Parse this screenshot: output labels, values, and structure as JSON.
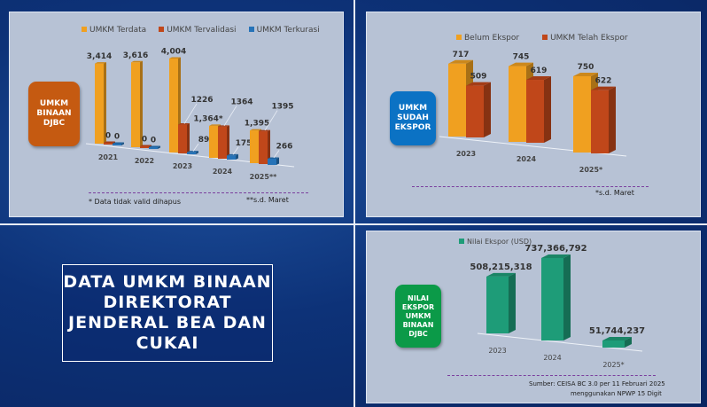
{
  "main_title": "DATA UMKM BINAAN DIREKTORAT JENDERAL BEA DAN CUKAI",
  "chart_data": [
    {
      "type": "bar",
      "badge": "UMKM\nBINAAN\nDJBC",
      "badge_color": "#c55a11",
      "categories": [
        "2021",
        "2022",
        "2023",
        "2024",
        "2025**"
      ],
      "series": [
        {
          "name": "UMKM Terdata",
          "color": "#f0a020",
          "values": [
            3414,
            3616,
            4004,
            1364,
            1395
          ],
          "labels": [
            "3,414",
            "3,616",
            "4,004",
            "1,364*",
            "1,395"
          ]
        },
        {
          "name": "UMKM Tervalidasi",
          "color": "#c0471a",
          "values": [
            0,
            0,
            1226,
            1364,
            1395
          ],
          "labels": [
            "0",
            "0",
            "1226",
            "1364",
            "1395"
          ]
        },
        {
          "name": "UMKM Terkurasi",
          "color": "#2673b8",
          "values": [
            0,
            0,
            89,
            175,
            266
          ],
          "labels": [
            "0",
            "0",
            "89",
            "175",
            "266"
          ]
        }
      ],
      "legend": "top",
      "notes": [
        "* Data tidak valid dihapus",
        "**s.d. Maret"
      ]
    },
    {
      "type": "bar",
      "badge": "UMKM\nSUDAH\nEKSPOR",
      "badge_color": "#0b72c4",
      "categories": [
        "2023",
        "2024",
        "2025*"
      ],
      "series": [
        {
          "name": "Belum Ekspor",
          "color": "#f0a020",
          "values": [
            717,
            745,
            750
          ],
          "labels": [
            "717",
            "745",
            "750"
          ]
        },
        {
          "name": "UMKM Telah Ekspor",
          "color": "#c0471a",
          "values": [
            509,
            619,
            622
          ],
          "labels": [
            "509",
            "619",
            "622"
          ]
        }
      ],
      "legend": "top",
      "notes": [
        "*s.d. Maret"
      ]
    },
    {
      "type": "bar",
      "badge": "NILAI\nEKSPOR\nUMKM\nBINAAN\nDJBC",
      "badge_color": "#0b9a48",
      "categories": [
        "2023",
        "2024",
        "2025*"
      ],
      "series": [
        {
          "name": "Nilai Ekspor (USD)",
          "color": "#1e9c78",
          "values": [
            508215318,
            737366792,
            51744237
          ],
          "labels": [
            "508,215,318",
            "737,366,792",
            "51,744,237"
          ]
        }
      ],
      "legend": "top",
      "notes": [
        "Sumber: CEISA BC 3.0 per 11 Februari 2025",
        "menggunakan NPWP 15 Digit"
      ]
    }
  ]
}
